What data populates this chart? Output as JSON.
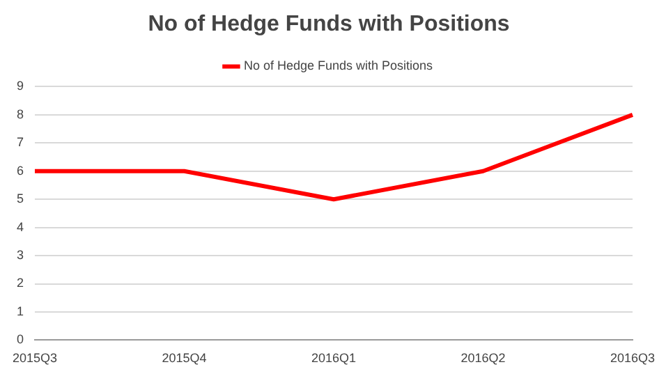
{
  "chart_data": {
    "type": "line",
    "title": "No of Hedge Funds with Positions",
    "categories": [
      "2015Q3",
      "2015Q4",
      "2016Q1",
      "2016Q2",
      "2016Q3"
    ],
    "series": [
      {
        "name": "No of Hedge Funds with Positions",
        "color": "#ff0000",
        "values": [
          6,
          6,
          5,
          6,
          8
        ]
      }
    ],
    "ylim": [
      0,
      9
    ],
    "yticks": [
      0,
      1,
      2,
      3,
      4,
      5,
      6,
      7,
      8,
      9
    ],
    "grid": "y",
    "legend": "top",
    "marker": "none"
  }
}
